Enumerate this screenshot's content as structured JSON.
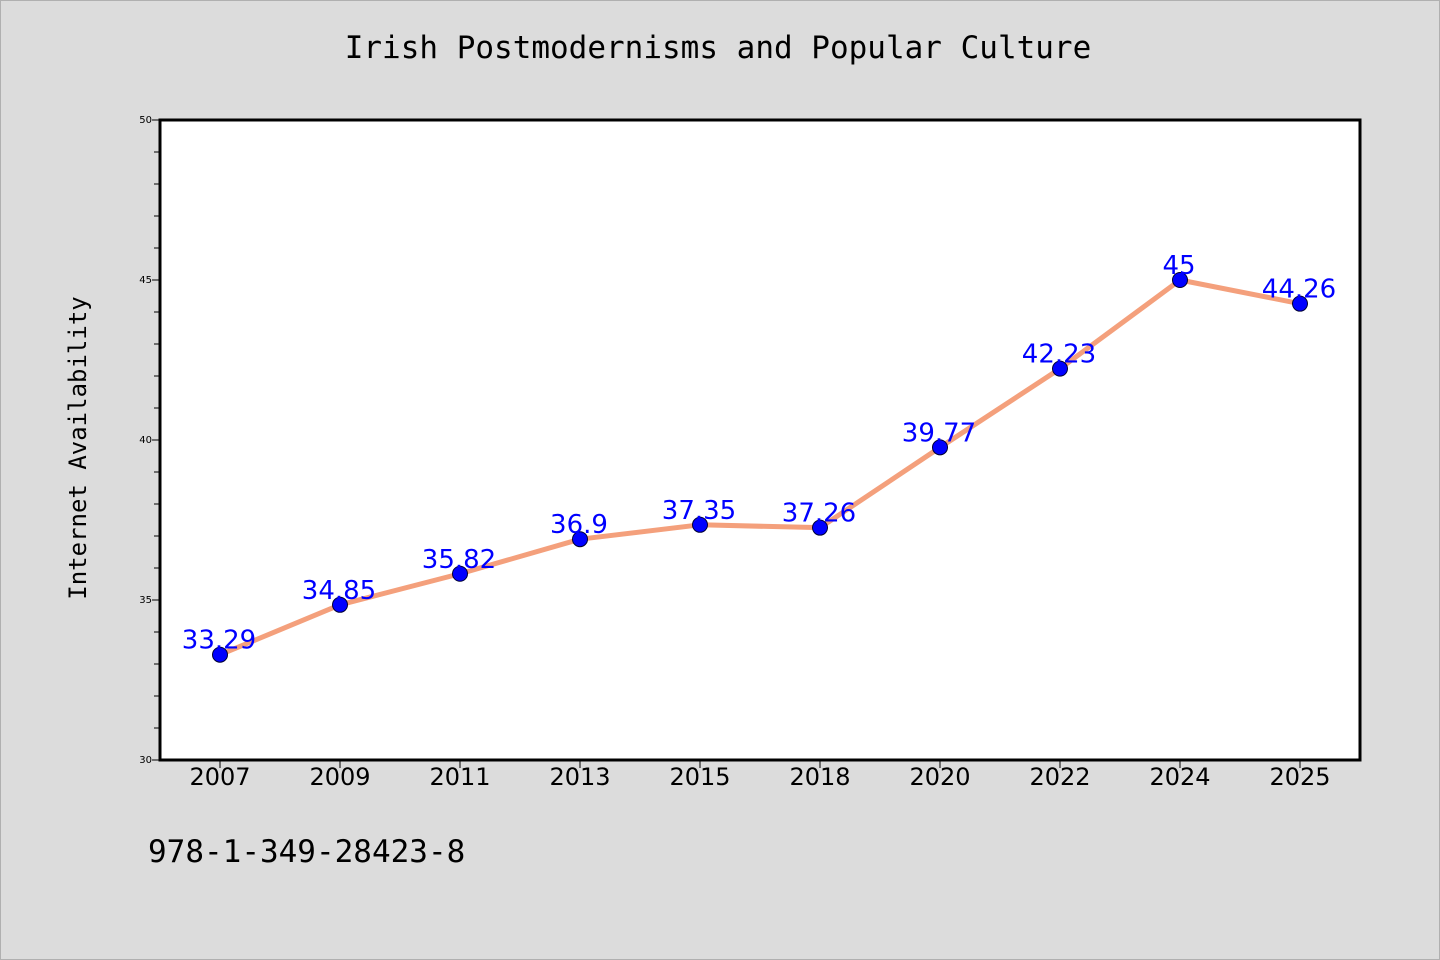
{
  "chart_data": {
    "type": "line",
    "title": "Irish Postmodernisms and Popular Culture",
    "xlabel": "",
    "ylabel": "Internet Availability",
    "categories": [
      "2007",
      "2009",
      "2011",
      "2013",
      "2015",
      "2018",
      "2020",
      "2022",
      "2024",
      "2025"
    ],
    "series": [
      {
        "values": [
          33.29,
          34.85,
          35.82,
          36.9,
          37.35,
          37.26,
          39.77,
          42.23,
          45,
          44.26
        ],
        "labels": [
          "33.29",
          "34.85",
          "35.82",
          "36.9",
          "37.35",
          "37.26",
          "39.77",
          "42.23",
          "45",
          "44.26"
        ],
        "line_color": "#f4a07c",
        "marker_color": "#0000ff"
      }
    ],
    "ylim": [
      30,
      50
    ],
    "yticks": [
      "30",
      "35",
      "40",
      "45",
      "50"
    ],
    "grid": false,
    "legend": "none",
    "background": "#dcdcdc",
    "plot_background": "#ffffff"
  },
  "caption": "978-1-349-28423-8"
}
